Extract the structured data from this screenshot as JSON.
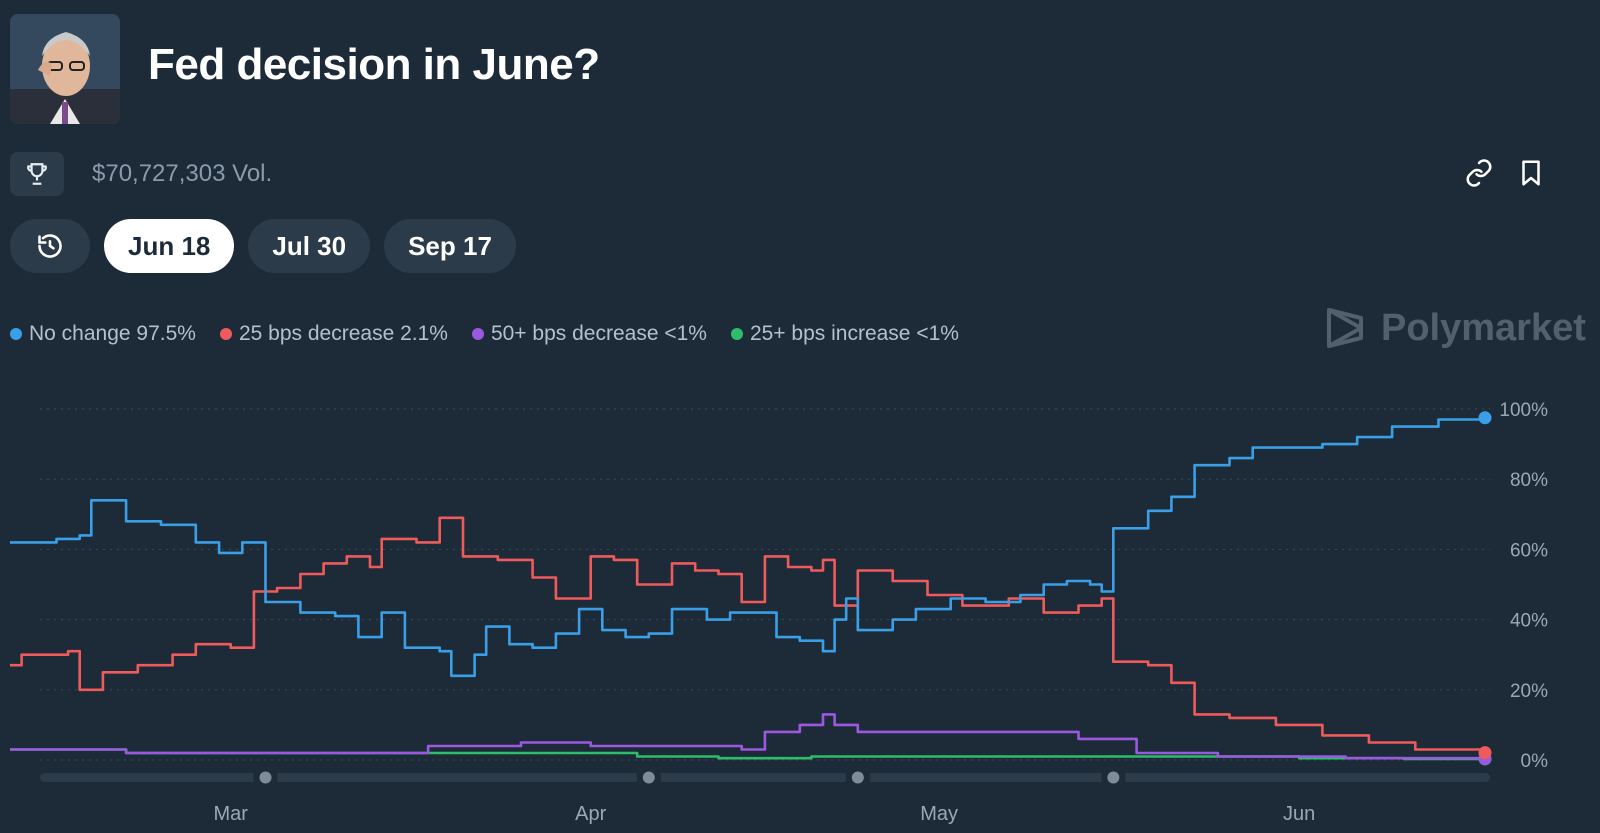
{
  "header": {
    "title": "Fed decision in June?"
  },
  "toolbar": {
    "volume": "$70,727,303 Vol.",
    "trophy_icon": "trophy-icon",
    "link_icon": "link-icon",
    "bookmark_icon": "bookmark-icon"
  },
  "tabs": [
    {
      "label": "",
      "icon": "history-icon"
    },
    {
      "label": "Jun 18",
      "active": true
    },
    {
      "label": "Jul 30"
    },
    {
      "label": "Sep 17"
    }
  ],
  "brand": {
    "name": "Polymarket"
  },
  "legend": [
    {
      "label": "No change 97.5%",
      "color": "#3a9fe6"
    },
    {
      "label": "25 bps decrease 2.1%",
      "color": "#ef5a5a"
    },
    {
      "label": "50+ bps decrease <1%",
      "color": "#9b59e0"
    },
    {
      "label": "25+ bps increase <1%",
      "color": "#2ebd6a"
    }
  ],
  "chart_data": {
    "type": "line",
    "x_range": [
      "2025-02-10",
      "2025-06-17"
    ],
    "ylim": [
      0,
      100
    ],
    "y_ticks": [
      "0%",
      "20%",
      "40%",
      "60%",
      "80%",
      "100%"
    ],
    "x_ticks": [
      {
        "label": "Mar",
        "date": "2025-03-01"
      },
      {
        "label": "Apr",
        "date": "2025-04-01"
      },
      {
        "label": "May",
        "date": "2025-05-01"
      },
      {
        "label": "Jun",
        "date": "2025-06-01"
      }
    ],
    "grid": true,
    "series": [
      {
        "name": "No change",
        "color": "#3a9fe6",
        "points": [
          [
            "2025-02-10",
            62
          ],
          [
            "2025-02-14",
            63
          ],
          [
            "2025-02-16",
            64
          ],
          [
            "2025-02-17",
            74
          ],
          [
            "2025-02-20",
            68
          ],
          [
            "2025-02-23",
            67
          ],
          [
            "2025-02-26",
            62
          ],
          [
            "2025-02-28",
            59
          ],
          [
            "2025-03-02",
            62
          ],
          [
            "2025-03-04",
            45
          ],
          [
            "2025-03-07",
            42
          ],
          [
            "2025-03-10",
            41
          ],
          [
            "2025-03-12",
            35
          ],
          [
            "2025-03-14",
            42
          ],
          [
            "2025-03-16",
            32
          ],
          [
            "2025-03-19",
            31
          ],
          [
            "2025-03-20",
            24
          ],
          [
            "2025-03-22",
            30
          ],
          [
            "2025-03-23",
            38
          ],
          [
            "2025-03-25",
            33
          ],
          [
            "2025-03-27",
            32
          ],
          [
            "2025-03-29",
            36
          ],
          [
            "2025-03-31",
            43
          ],
          [
            "2025-04-02",
            37
          ],
          [
            "2025-04-04",
            35
          ],
          [
            "2025-04-06",
            36
          ],
          [
            "2025-04-08",
            43
          ],
          [
            "2025-04-11",
            40
          ],
          [
            "2025-04-13",
            42
          ],
          [
            "2025-04-15",
            42
          ],
          [
            "2025-04-17",
            35
          ],
          [
            "2025-04-19",
            34
          ],
          [
            "2025-04-21",
            31
          ],
          [
            "2025-04-22",
            40
          ],
          [
            "2025-04-23",
            46
          ],
          [
            "2025-04-24",
            37
          ],
          [
            "2025-04-27",
            40
          ],
          [
            "2025-04-29",
            43
          ],
          [
            "2025-05-02",
            46
          ],
          [
            "2025-05-05",
            45
          ],
          [
            "2025-05-08",
            47
          ],
          [
            "2025-05-10",
            50
          ],
          [
            "2025-05-12",
            51
          ],
          [
            "2025-05-14",
            50
          ],
          [
            "2025-05-15",
            48
          ],
          [
            "2025-05-16",
            66
          ],
          [
            "2025-05-19",
            71
          ],
          [
            "2025-05-21",
            75
          ],
          [
            "2025-05-23",
            84
          ],
          [
            "2025-05-26",
            86
          ],
          [
            "2025-05-28",
            89
          ],
          [
            "2025-05-31",
            89
          ],
          [
            "2025-06-03",
            90
          ],
          [
            "2025-06-06",
            92
          ],
          [
            "2025-06-09",
            95
          ],
          [
            "2025-06-13",
            97
          ],
          [
            "2025-06-17",
            97.5
          ]
        ]
      },
      {
        "name": "25 bps decrease",
        "color": "#ef5a5a",
        "points": [
          [
            "2025-02-10",
            27
          ],
          [
            "2025-02-11",
            30
          ],
          [
            "2025-02-15",
            31
          ],
          [
            "2025-02-16",
            20
          ],
          [
            "2025-02-18",
            25
          ],
          [
            "2025-02-21",
            27
          ],
          [
            "2025-02-24",
            30
          ],
          [
            "2025-02-26",
            33
          ],
          [
            "2025-02-28",
            33
          ],
          [
            "2025-03-01",
            32
          ],
          [
            "2025-03-03",
            48
          ],
          [
            "2025-03-05",
            49
          ],
          [
            "2025-03-07",
            53
          ],
          [
            "2025-03-09",
            56
          ],
          [
            "2025-03-11",
            58
          ],
          [
            "2025-03-13",
            55
          ],
          [
            "2025-03-14",
            63
          ],
          [
            "2025-03-17",
            62
          ],
          [
            "2025-03-19",
            69
          ],
          [
            "2025-03-21",
            58
          ],
          [
            "2025-03-24",
            57
          ],
          [
            "2025-03-27",
            52
          ],
          [
            "2025-03-29",
            46
          ],
          [
            "2025-04-01",
            58
          ],
          [
            "2025-04-03",
            57
          ],
          [
            "2025-04-05",
            50
          ],
          [
            "2025-04-08",
            56
          ],
          [
            "2025-04-10",
            54
          ],
          [
            "2025-04-12",
            53
          ],
          [
            "2025-04-14",
            45
          ],
          [
            "2025-04-16",
            58
          ],
          [
            "2025-04-18",
            55
          ],
          [
            "2025-04-20",
            54
          ],
          [
            "2025-04-21",
            57
          ],
          [
            "2025-04-22",
            44
          ],
          [
            "2025-04-24",
            54
          ],
          [
            "2025-04-27",
            51
          ],
          [
            "2025-04-30",
            47
          ],
          [
            "2025-05-03",
            44
          ],
          [
            "2025-05-07",
            46
          ],
          [
            "2025-05-10",
            42
          ],
          [
            "2025-05-13",
            44
          ],
          [
            "2025-05-15",
            46
          ],
          [
            "2025-05-16",
            28
          ],
          [
            "2025-05-19",
            27
          ],
          [
            "2025-05-21",
            22
          ],
          [
            "2025-05-23",
            13
          ],
          [
            "2025-05-26",
            12
          ],
          [
            "2025-05-30",
            10
          ],
          [
            "2025-06-03",
            7
          ],
          [
            "2025-06-07",
            5
          ],
          [
            "2025-06-11",
            3
          ],
          [
            "2025-06-17",
            2.1
          ]
        ]
      },
      {
        "name": "50+ bps decrease",
        "color": "#9b59e0",
        "points": [
          [
            "2025-02-10",
            3
          ],
          [
            "2025-02-15",
            3
          ],
          [
            "2025-02-20",
            2
          ],
          [
            "2025-02-28",
            2
          ],
          [
            "2025-03-10",
            2
          ],
          [
            "2025-03-18",
            4
          ],
          [
            "2025-03-26",
            5
          ],
          [
            "2025-04-01",
            4
          ],
          [
            "2025-04-10",
            4
          ],
          [
            "2025-04-14",
            3
          ],
          [
            "2025-04-16",
            8
          ],
          [
            "2025-04-19",
            10
          ],
          [
            "2025-04-21",
            13
          ],
          [
            "2025-04-22",
            10
          ],
          [
            "2025-04-24",
            8
          ],
          [
            "2025-05-01",
            8
          ],
          [
            "2025-05-07",
            8
          ],
          [
            "2025-05-13",
            6
          ],
          [
            "2025-05-18",
            2
          ],
          [
            "2025-05-25",
            1
          ],
          [
            "2025-06-05",
            0.5
          ],
          [
            "2025-06-17",
            0.4
          ]
        ]
      },
      {
        "name": "25+ bps increase",
        "color": "#2ebd6a",
        "points": [
          [
            "2025-02-10",
            3
          ],
          [
            "2025-02-20",
            2
          ],
          [
            "2025-03-01",
            2
          ],
          [
            "2025-03-10",
            2
          ],
          [
            "2025-03-20",
            2
          ],
          [
            "2025-03-28",
            2
          ],
          [
            "2025-04-05",
            1
          ],
          [
            "2025-04-12",
            0.5
          ],
          [
            "2025-04-20",
            1
          ],
          [
            "2025-04-30",
            1
          ],
          [
            "2025-05-10",
            1
          ],
          [
            "2025-05-20",
            1
          ],
          [
            "2025-06-01",
            0.5
          ],
          [
            "2025-06-10",
            0.3
          ],
          [
            "2025-06-17",
            0.3
          ]
        ]
      }
    ],
    "timeline_markers": [
      "2025-03-04",
      "2025-04-06",
      "2025-04-24",
      "2025-05-16"
    ]
  }
}
